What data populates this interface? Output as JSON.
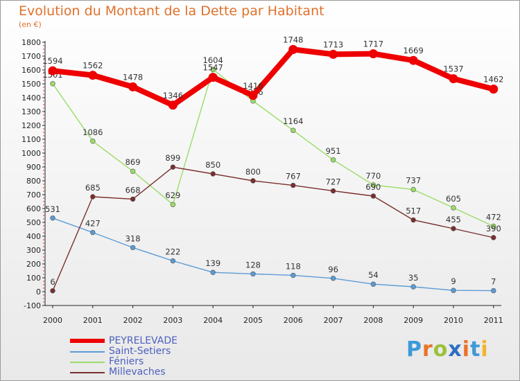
{
  "chart_data": {
    "type": "line",
    "title": "Evolution du Montant de la Dette par Habitant",
    "subtitle": "(en €)",
    "xlabel": "",
    "ylabel": "",
    "categories": [
      "2000",
      "2001",
      "2002",
      "2003",
      "2004",
      "2005",
      "2006",
      "2007",
      "2008",
      "2009",
      "2010",
      "2011"
    ],
    "ylim": [
      -100,
      1800
    ],
    "yticks": [
      -100,
      0,
      100,
      200,
      300,
      400,
      500,
      600,
      700,
      800,
      900,
      1000,
      1100,
      1200,
      1300,
      1400,
      1500,
      1600,
      1700,
      1800
    ],
    "grid": false,
    "legend_position": "bottom-left",
    "series": [
      {
        "name": "PEYRELEVADE",
        "color": "#ee0000",
        "values": [
          1594,
          1562,
          1478,
          1346,
          1547,
          1416,
          1748,
          1713,
          1717,
          1669,
          1537,
          1462
        ]
      },
      {
        "name": "Saint-Setiers",
        "color": "#5b9bd5",
        "values": [
          531,
          427,
          318,
          222,
          139,
          128,
          118,
          96,
          54,
          35,
          9,
          7
        ]
      },
      {
        "name": "Féniers",
        "color": "#99dd66",
        "values": [
          1501,
          1086,
          869,
          629,
          1604,
          1376,
          1164,
          951,
          770,
          737,
          605,
          472
        ]
      },
      {
        "name": "Millevaches",
        "color": "#7a2e2e",
        "values": [
          6,
          685,
          668,
          899,
          850,
          800,
          767,
          727,
          690,
          517,
          455,
          390
        ]
      }
    ]
  },
  "branding": {
    "logo_text": "Proxiti"
  }
}
